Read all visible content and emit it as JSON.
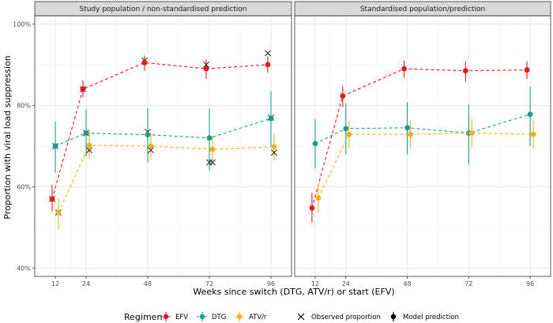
{
  "chart_data": {
    "type": "line",
    "ylabel": "Proportion with viral load suppression",
    "xlabel": "Weeks since switch (DTG, ATV/r) or start (EFV)",
    "x_ticks": [
      12,
      24,
      48,
      72,
      96
    ],
    "xlim": [
      4,
      104
    ],
    "y_ticks": [
      {
        "value": 0.4,
        "label": "40%"
      },
      {
        "value": 0.6,
        "label": "60%"
      },
      {
        "value": 0.8,
        "label": "80%"
      },
      {
        "value": 1.0,
        "label": "100%"
      }
    ],
    "ylim": [
      0.38,
      1.02
    ],
    "colors": {
      "EFV": "#e31a1c",
      "DTG": "#1a9e8a",
      "ATV/r": "#f2b01e"
    },
    "legend": {
      "title": "Regimen",
      "regimens": [
        "EFV",
        "DTG",
        "ATV/r"
      ],
      "observed_label": "Observed proportion",
      "model_label": "Model prediction"
    },
    "panels": [
      {
        "title": "Study population / non-standardised prediction",
        "series": [
          {
            "name": "EFV",
            "x": [
              12,
              24,
              48,
              72,
              96
            ],
            "pred": [
              0.57,
              0.84,
              0.905,
              0.89,
              0.9
            ],
            "lo": [
              0.54,
              0.82,
              0.885,
              0.865,
              0.88
            ],
            "hi": [
              0.605,
              0.862,
              0.922,
              0.912,
              0.92
            ],
            "obs": [
              0.57,
              0.84,
              0.91,
              0.9,
              0.928
            ]
          },
          {
            "name": "DTG",
            "x": [
              12,
              24,
              48,
              72,
              96
            ],
            "pred": [
              0.7,
              0.732,
              0.728,
              0.72,
              0.768
            ],
            "lo": [
              0.635,
              0.675,
              0.66,
              0.64,
              0.7
            ],
            "hi": [
              0.76,
              0.79,
              0.793,
              0.792,
              0.835
            ],
            "obs": [
              0.7,
              0.732,
              0.735,
              0.66,
              0.77
            ]
          },
          {
            "name": "ATV/r",
            "x": [
              12,
              24,
              48,
              72,
              96
            ],
            "pred": [
              0.537,
              0.702,
              0.7,
              0.692,
              0.698
            ],
            "lo": [
              0.495,
              0.67,
              0.668,
              0.66,
              0.665
            ],
            "hi": [
              0.572,
              0.735,
              0.733,
              0.725,
              0.73
            ],
            "obs": [
              0.537,
              0.69,
              0.69,
              0.66,
              0.684
            ]
          }
        ]
      },
      {
        "title": "Standardised population/prediction",
        "series": [
          {
            "name": "EFV",
            "x": [
              12,
              24,
              48,
              72,
              96
            ],
            "pred": [
              0.548,
              0.823,
              0.89,
              0.885,
              0.887
            ],
            "lo": [
              0.512,
              0.796,
              0.868,
              0.858,
              0.865
            ],
            "hi": [
              0.585,
              0.847,
              0.91,
              0.908,
              0.908
            ]
          },
          {
            "name": "DTG",
            "x": [
              12,
              24,
              48,
              72,
              96
            ],
            "pred": [
              0.706,
              0.743,
              0.745,
              0.732,
              0.778
            ],
            "lo": [
              0.645,
              0.68,
              0.68,
              0.655,
              0.7
            ],
            "hi": [
              0.766,
              0.806,
              0.808,
              0.802,
              0.846
            ]
          },
          {
            "name": "ATV/r",
            "x": [
              12,
              24,
              48,
              72,
              96
            ],
            "pred": [
              0.573,
              0.729,
              0.729,
              0.732,
              0.729
            ],
            "lo": [
              0.535,
              0.695,
              0.695,
              0.697,
              0.695
            ],
            "hi": [
              0.61,
              0.762,
              0.762,
              0.766,
              0.762
            ]
          }
        ]
      }
    ]
  }
}
